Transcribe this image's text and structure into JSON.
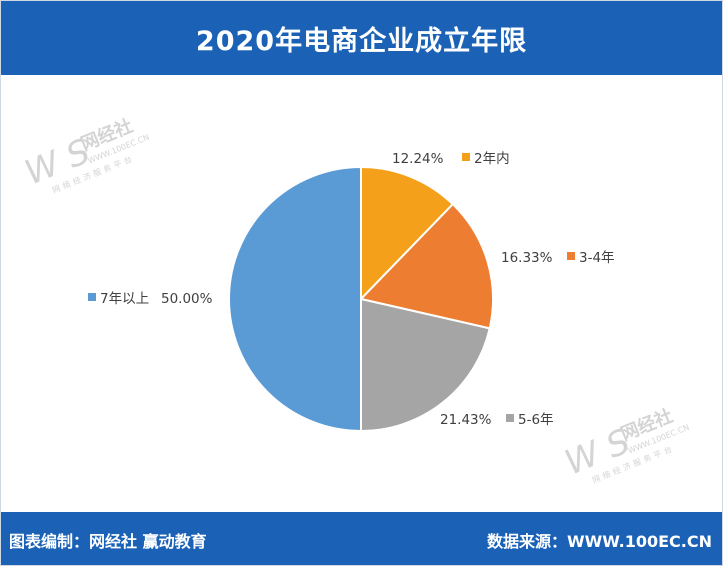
{
  "header": {
    "title": "2020年电商企业成立年限"
  },
  "footer": {
    "left_text": "图表编制：网经社  赢动教育",
    "right_text": "数据来源：WWW.100EC.CN"
  },
  "watermark": {
    "logo_text": "W S",
    "brand": "网经社",
    "url": "WWW.100EC.CN",
    "tagline": "网络经济服务平台"
  },
  "chart_data": {
    "type": "pie",
    "start_angle_deg": 0,
    "direction": "clockwise",
    "slices": [
      {
        "label": "2年内",
        "value": 12.24,
        "value_text": "12.24%",
        "color": "#f5a01a"
      },
      {
        "label": "3-4年",
        "value": 16.33,
        "value_text": "16.33%",
        "color": "#ec7d31"
      },
      {
        "label": "5-6年",
        "value": 21.43,
        "value_text": "21.43%",
        "color": "#a5a5a5"
      },
      {
        "label": "7年以上",
        "value": 50.0,
        "value_text": "50.00%",
        "color": "#5b9bd5"
      }
    ]
  }
}
